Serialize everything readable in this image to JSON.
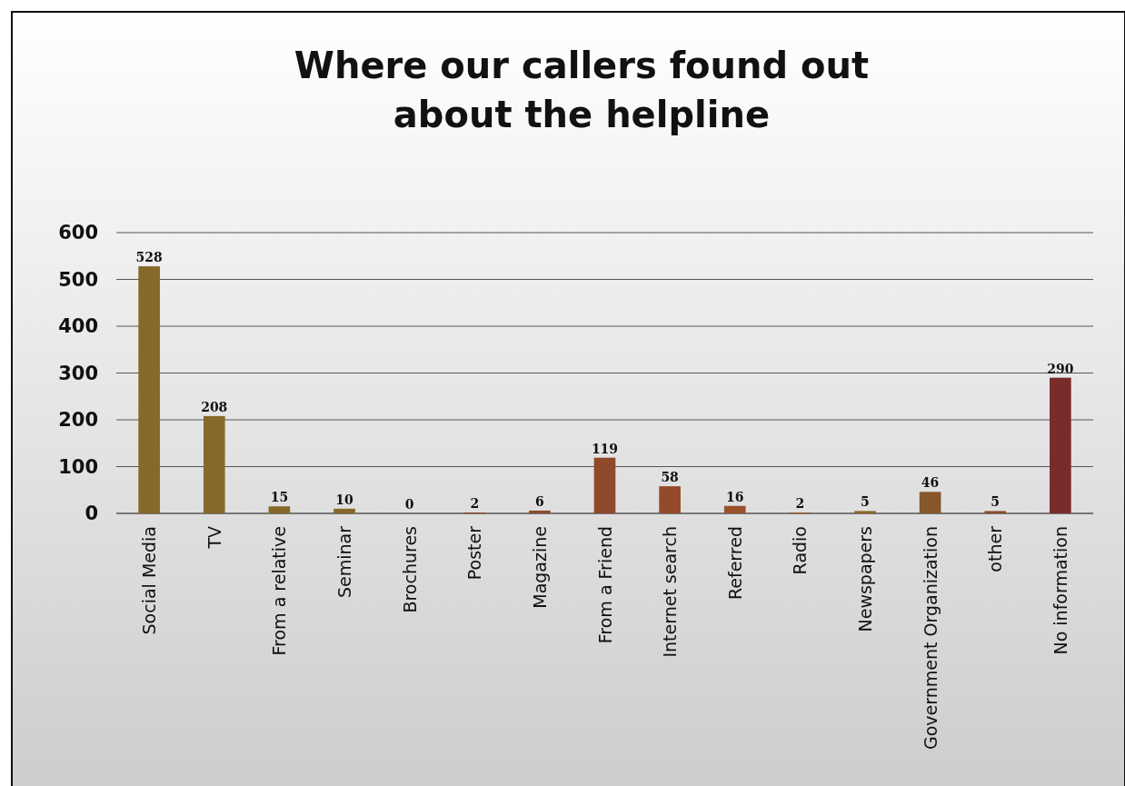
{
  "chart_data": {
    "type": "bar",
    "title": "Where our callers found out about the helpline",
    "categories": [
      "Social Media",
      "TV",
      "From a relative",
      "Seminar",
      "Brochures",
      "Poster",
      "Magazine",
      "From a Friend",
      "Internet search",
      "Referred",
      "Radio",
      "Newspapers",
      "Government Organization",
      "other",
      "No information"
    ],
    "values": [
      528,
      208,
      15,
      10,
      0,
      2,
      6,
      119,
      58,
      16,
      2,
      5,
      46,
      5,
      290
    ],
    "colors": [
      "#86682a",
      "#86682a",
      "#86682a",
      "#86682a",
      "#86682a",
      "#8f4a2b",
      "#8f4a2b",
      "#8f4a2b",
      "#93492a",
      "#99512a",
      "#9a5a28",
      "#8a6425",
      "#86572a",
      "#8f4a2b",
      "#7a2c2a"
    ],
    "ylim": [
      0,
      600
    ],
    "yticks": [
      0,
      100,
      200,
      300,
      400,
      500,
      600
    ],
    "grid": "y",
    "data_labels": true
  }
}
